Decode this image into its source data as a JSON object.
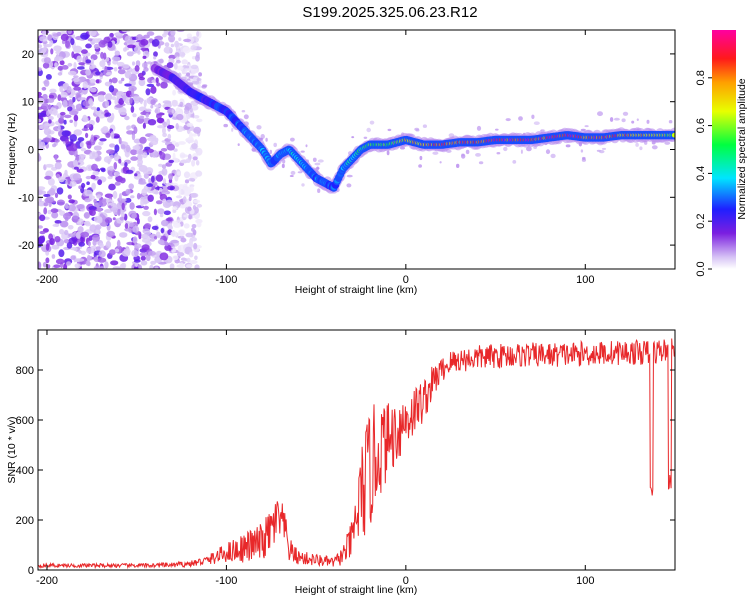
{
  "title": "S199.2025.325.06.23.R12",
  "chart_data": [
    {
      "type": "heatmap",
      "name": "spectrogram",
      "xlabel": "Height of straight line (km)",
      "ylabel": "Frequency (Hz)",
      "xlim": [
        -205,
        150
      ],
      "ylim": [
        -25,
        25
      ],
      "xticks": [
        -200,
        -100,
        0,
        100
      ],
      "yticks": [
        20,
        10,
        0,
        -10,
        -20
      ],
      "xtick_labels": [
        "-200",
        "-100",
        "0",
        "100"
      ],
      "ytick_labels": [
        "20",
        "10",
        "0",
        "-10",
        "-20"
      ],
      "ridge": {
        "x": [
          -140,
          -130,
          -120,
          -110,
          -100,
          -90,
          -80,
          -75,
          -70,
          -65,
          -60,
          -55,
          -50,
          -45,
          -40,
          -35,
          -30,
          -25,
          -20,
          -10,
          0,
          10,
          20,
          30,
          40,
          50,
          60,
          70,
          80,
          90,
          100,
          110,
          120,
          130,
          140,
          150
        ],
        "y": [
          17,
          15,
          12,
          10,
          8,
          4,
          0,
          -3,
          -1,
          0,
          -2,
          -4,
          -6,
          -7,
          -8,
          -4,
          -2,
          0,
          1,
          1,
          2,
          1,
          1,
          1.5,
          1.5,
          2,
          2,
          2,
          2.5,
          3,
          2.5,
          2.5,
          3,
          3,
          3,
          3
        ],
        "amplitude": [
          0.15,
          0.2,
          0.22,
          0.25,
          0.28,
          0.3,
          0.35,
          0.3,
          0.35,
          0.4,
          0.38,
          0.35,
          0.32,
          0.3,
          0.3,
          0.35,
          0.45,
          0.5,
          0.55,
          0.6,
          0.75,
          0.8,
          0.85,
          0.9,
          0.95,
          0.9,
          0.95,
          0.95,
          0.95,
          0.95,
          0.9,
          0.9,
          0.85,
          0.8,
          0.7,
          0.6
        ]
      },
      "noise_region_x": [
        -205,
        -130
      ]
    },
    {
      "type": "colorbar",
      "name": "colorbar",
      "label": "Normalized spectral amplitude",
      "range": [
        0.0,
        1.0
      ],
      "ticks": [
        0.0,
        0.2,
        0.4,
        0.6,
        0.8
      ],
      "tick_labels": [
        "0.0",
        "0.2",
        "0.4",
        "0.6",
        "0.8"
      ]
    },
    {
      "type": "line",
      "name": "snr",
      "xlabel": "Height of straight line (km)",
      "ylabel": "SNR (10 * v/v)",
      "xlim": [
        -205,
        150
      ],
      "ylim": [
        0,
        960
      ],
      "xticks": [
        -200,
        -100,
        0,
        100
      ],
      "yticks": [
        0,
        200,
        400,
        600,
        800
      ],
      "xtick_labels": [
        "-200",
        "-100",
        "0",
        "100"
      ],
      "ytick_labels": [
        "0",
        "200",
        "400",
        "600",
        "800"
      ],
      "color": "#e8282a",
      "envelope": {
        "x": [
          -205,
          -150,
          -130,
          -120,
          -110,
          -100,
          -90,
          -80,
          -75,
          -72,
          -68,
          -65,
          -60,
          -50,
          -40,
          -35,
          -30,
          -25,
          -20,
          -15,
          -10,
          -5,
          0,
          5,
          10,
          15,
          20,
          25,
          30,
          40,
          50,
          60,
          80,
          100,
          120,
          130,
          135,
          140,
          145,
          150
        ],
        "mean": [
          18,
          18,
          20,
          25,
          40,
          70,
          90,
          110,
          160,
          200,
          180,
          80,
          50,
          40,
          30,
          60,
          120,
          300,
          400,
          480,
          520,
          560,
          600,
          640,
          680,
          750,
          800,
          830,
          840,
          850,
          855,
          860,
          860,
          865,
          870,
          870,
          870,
          875,
          880,
          880
        ],
        "amp": [
          8,
          8,
          10,
          12,
          20,
          40,
          60,
          80,
          90,
          100,
          80,
          50,
          30,
          25,
          20,
          40,
          80,
          200,
          250,
          200,
          150,
          140,
          120,
          100,
          90,
          70,
          50,
          50,
          50,
          50,
          50,
          50,
          50,
          50,
          50,
          50,
          50,
          50,
          50,
          50
        ]
      },
      "dips": [
        {
          "x": 137,
          "min": 290
        },
        {
          "x": 147,
          "min": 320
        }
      ]
    }
  ]
}
